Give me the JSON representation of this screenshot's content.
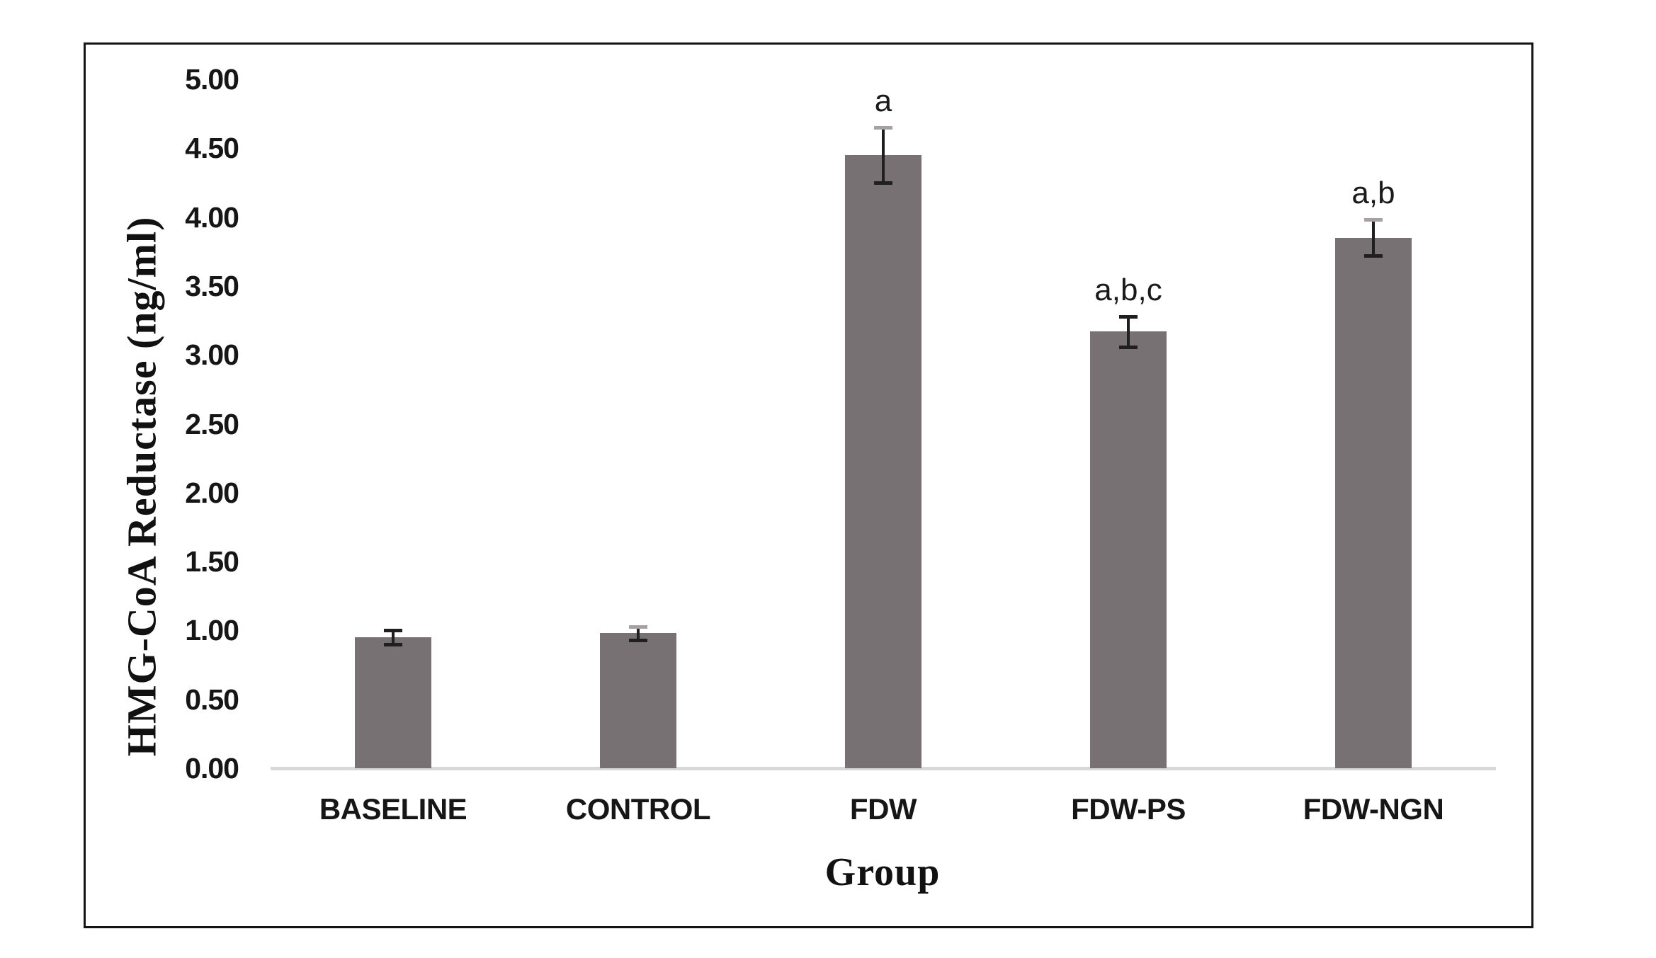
{
  "chart_data": {
    "type": "bar",
    "title": "",
    "xlabel": "Group",
    "ylabel": "HMG-CoA Reductase (ng/ml)",
    "categories": [
      "BASELINE",
      "CONTROL",
      "FDW",
      "FDW-PS",
      "FDW-NGN"
    ],
    "values": [
      0.95,
      0.98,
      4.45,
      3.17,
      3.85
    ],
    "error_bars": [
      0.05,
      0.05,
      0.2,
      0.11,
      0.13
    ],
    "annotations": [
      "",
      "",
      "a",
      "a,b,c",
      "a,b"
    ],
    "ylim": [
      0,
      5
    ],
    "ytick_step": 0.5,
    "ytick_decimals": 2,
    "ytick_labels": [
      "0.00",
      "0.50",
      "1.00",
      "1.50",
      "2.00",
      "2.50",
      "3.00",
      "3.50",
      "4.00",
      "4.50",
      "5.00"
    ],
    "grid": false,
    "legend": false,
    "colors": {
      "bar_fill": "#787173",
      "axis_baseline": "#d8d8d8",
      "error_bar": "#1f1f1f",
      "error_top_caps": [
        "#1f1f1f",
        "#a7a1a1",
        "#a7a1a1",
        "#1f1f1f",
        "#a7a1a1"
      ],
      "frame_border": "#141414",
      "text": "#161616"
    }
  }
}
